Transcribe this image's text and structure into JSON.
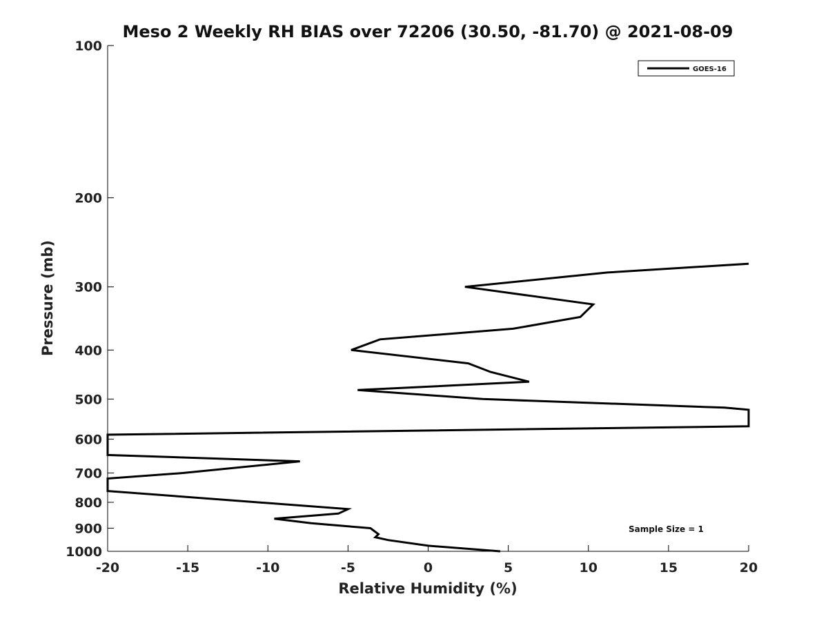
{
  "chart_data": {
    "type": "line",
    "title": "Meso 2 Weekly RH BIAS over 72206 (30.50, -81.70) @ 2021-08-09",
    "xlabel": "Relative Humidity (%)",
    "ylabel": "Pressure (mb)",
    "xlim": [
      -20,
      20
    ],
    "ylim": [
      100,
      1000
    ],
    "y_scale": "log",
    "y_reversed": true,
    "grid": false,
    "legend_position": "top-right",
    "x_ticks": [
      "-20",
      "-15",
      "-10",
      "-5",
      "0",
      "5",
      "10",
      "15",
      "20"
    ],
    "y_ticks": [
      {
        "value": 100,
        "label": "100"
      },
      {
        "value": 200,
        "label": "200"
      },
      {
        "value": 300,
        "label": "300"
      },
      {
        "value": 400,
        "label": "400"
      },
      {
        "value": 500,
        "label": "500"
      },
      {
        "value": 600,
        "label": "600"
      },
      {
        "value": 700,
        "label": "700"
      },
      {
        "value": 800,
        "label": "800"
      },
      {
        "value": 900,
        "label": "900"
      },
      {
        "value": 1000,
        "label": "1000"
      }
    ],
    "series": [
      {
        "name": "GOES-16",
        "color": "#000000",
        "points": [
          {
            "x": 4.5,
            "y": 1000
          },
          {
            "x": 0,
            "y": 975
          },
          {
            "x": -2.5,
            "y": 950
          },
          {
            "x": -3.3,
            "y": 938
          },
          {
            "x": -3.1,
            "y": 925
          },
          {
            "x": -3.6,
            "y": 900
          },
          {
            "x": -7.3,
            "y": 880
          },
          {
            "x": -9.6,
            "y": 862
          },
          {
            "x": -5.6,
            "y": 842
          },
          {
            "x": -5.0,
            "y": 825
          },
          {
            "x": -20,
            "y": 760
          },
          {
            "x": -20,
            "y": 718
          },
          {
            "x": -15.3,
            "y": 700
          },
          {
            "x": -8.0,
            "y": 664
          },
          {
            "x": -20,
            "y": 645
          },
          {
            "x": -20,
            "y": 588
          },
          {
            "x": 20,
            "y": 566
          },
          {
            "x": 20,
            "y": 525
          },
          {
            "x": 18.5,
            "y": 520
          },
          {
            "x": 3.4,
            "y": 500
          },
          {
            "x": -4.4,
            "y": 480
          },
          {
            "x": 6.3,
            "y": 462
          },
          {
            "x": 3.9,
            "y": 442
          },
          {
            "x": 2.5,
            "y": 425
          },
          {
            "x": -4.8,
            "y": 400
          },
          {
            "x": -3.0,
            "y": 381
          },
          {
            "x": 5.3,
            "y": 363
          },
          {
            "x": 9.5,
            "y": 344
          },
          {
            "x": 10.3,
            "y": 325
          },
          {
            "x": 2.3,
            "y": 300
          },
          {
            "x": 11.2,
            "y": 281
          },
          {
            "x": 20,
            "y": 270
          }
        ]
      }
    ],
    "annotation": "Sample Size = 1"
  }
}
